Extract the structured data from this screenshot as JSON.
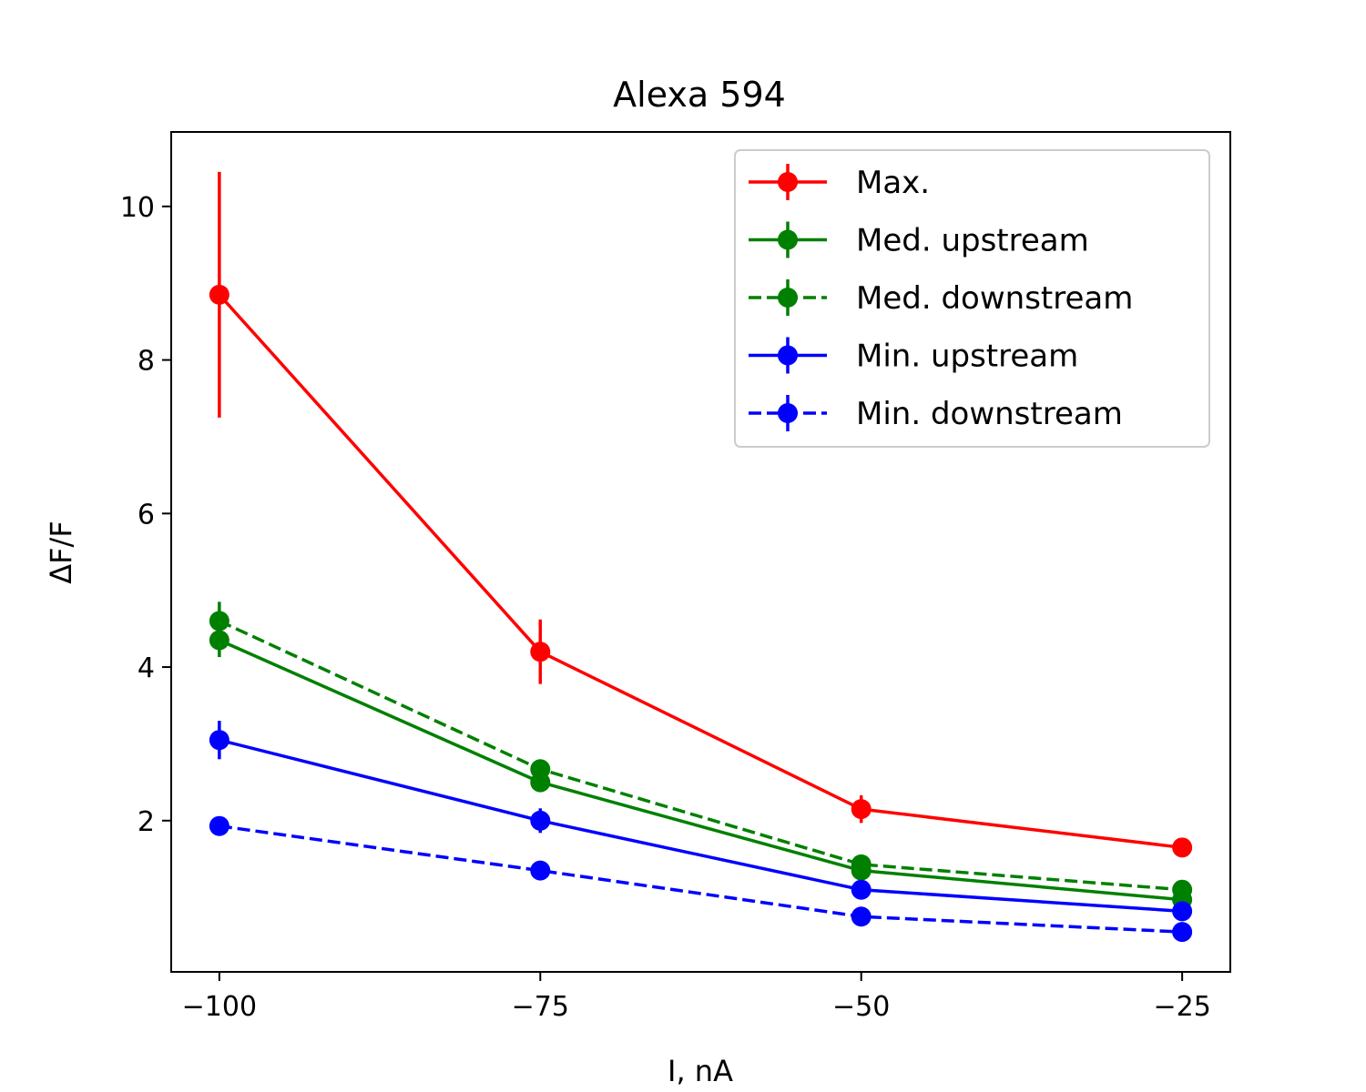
{
  "chart_data": {
    "type": "line",
    "title": "Alexa 594",
    "xlabel": "I, nA",
    "ylabel": "ΔF/F",
    "x": [
      -100,
      -75,
      -50,
      -25
    ],
    "xlim": [
      -103.75,
      -21.25
    ],
    "ylim": [
      0.03,
      10.97
    ],
    "xticks": [
      -100,
      -75,
      -50,
      -25
    ],
    "xtick_labels": [
      "−100",
      "−75",
      "−50",
      "−25"
    ],
    "yticks": [
      2,
      4,
      6,
      8,
      10
    ],
    "ytick_labels": [
      "2",
      "4",
      "6",
      "8",
      "10"
    ],
    "grid": false,
    "legend_position": "top-right",
    "series": [
      {
        "name": "Max.",
        "color": "#ff0000",
        "dash": "solid",
        "values": [
          8.85,
          4.2,
          2.15,
          1.65
        ],
        "errors": [
          1.6,
          0.42,
          0.18,
          0.05
        ]
      },
      {
        "name": "Med. upstream",
        "color": "#008000",
        "dash": "solid",
        "values": [
          4.35,
          2.5,
          1.35,
          0.97
        ],
        "errors": [
          0.22,
          0.1,
          0.05,
          0.03
        ]
      },
      {
        "name": "Med. downstream",
        "color": "#008000",
        "dash": "dashed",
        "values": [
          4.6,
          2.67,
          1.43,
          1.1
        ],
        "errors": [
          0.25,
          0.1,
          0.05,
          0.03
        ]
      },
      {
        "name": "Min. upstream",
        "color": "#0000ff",
        "dash": "solid",
        "values": [
          3.05,
          2.0,
          1.1,
          0.82
        ],
        "errors": [
          0.25,
          0.16,
          0.06,
          0.04
        ]
      },
      {
        "name": "Min. downstream",
        "color": "#0000ff",
        "dash": "dashed",
        "values": [
          1.93,
          1.35,
          0.75,
          0.55
        ],
        "errors": [
          0.04,
          0.05,
          0.03,
          0.03
        ]
      }
    ]
  }
}
